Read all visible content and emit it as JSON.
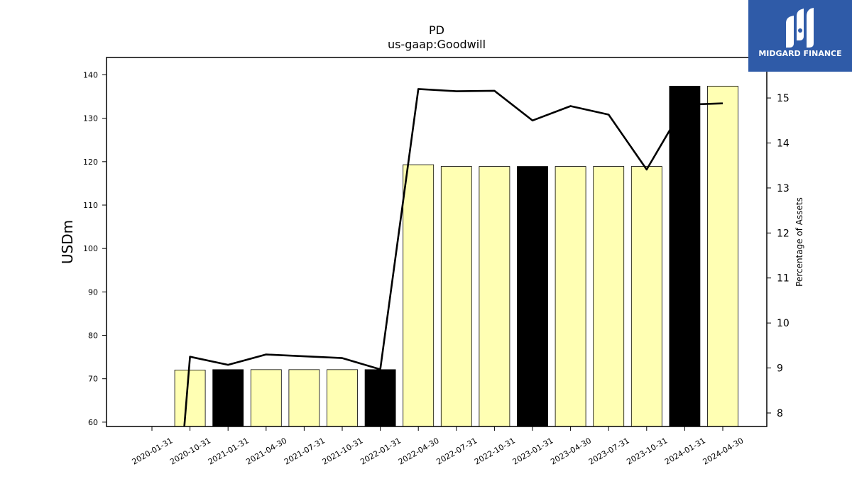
{
  "chart_data": {
    "type": "bar",
    "title": "PD",
    "subtitle": "us-gaap:Goodwill",
    "ylabel": "USDm",
    "y2label": "Percentage of Assets",
    "categories": [
      "2020-01-31",
      "2020-10-31",
      "2021-01-31",
      "2021-04-30",
      "2021-07-31",
      "2021-10-31",
      "2022-01-31",
      "2022-04-30",
      "2022-07-31",
      "2022-10-31",
      "2023-01-31",
      "2023-04-30",
      "2023-07-31",
      "2023-10-31",
      "2024-01-31",
      "2024-04-30"
    ],
    "series": [
      {
        "name": "",
        "axis": "left",
        "kind": "bar",
        "values": [
          null,
          72.0,
          72.1,
          72.1,
          72.1,
          72.1,
          72.1,
          119.3,
          118.9,
          118.9,
          118.9,
          118.9,
          118.9,
          118.9,
          137.4,
          137.4
        ],
        "fill": [
          "#ffffb3",
          "#ffffb3",
          "#000000",
          "#ffffb3",
          "#ffffb3",
          "#ffffb3",
          "#000000",
          "#ffffb3",
          "#ffffb3",
          "#ffffb3",
          "#000000",
          "#ffffb3",
          "#ffffb3",
          "#ffffb3",
          "#000000",
          "#ffffb3"
        ]
      },
      {
        "name": "",
        "axis": "right",
        "kind": "line",
        "values": [
          null,
          9.25,
          9.07,
          9.3,
          9.26,
          9.22,
          8.97,
          15.2,
          15.15,
          15.16,
          14.5,
          14.82,
          14.63,
          13.41,
          14.85,
          14.88
        ],
        "start": {
          "category": "2020-10-31",
          "value": 7.7
        },
        "color": "#000000"
      }
    ],
    "ylim": [
      59,
      144
    ],
    "yticks": [
      60,
      70,
      80,
      90,
      100,
      110,
      120,
      130,
      140
    ],
    "y2lim": [
      7.7,
      15.9
    ],
    "y2ticks": [
      8,
      9,
      10,
      11,
      12,
      13,
      14,
      15
    ],
    "grid": false,
    "legend": "none"
  },
  "logo": {
    "text": "MIDGARD FINANCE",
    "background": "#2f5ba8",
    "color": "#ffffff"
  }
}
